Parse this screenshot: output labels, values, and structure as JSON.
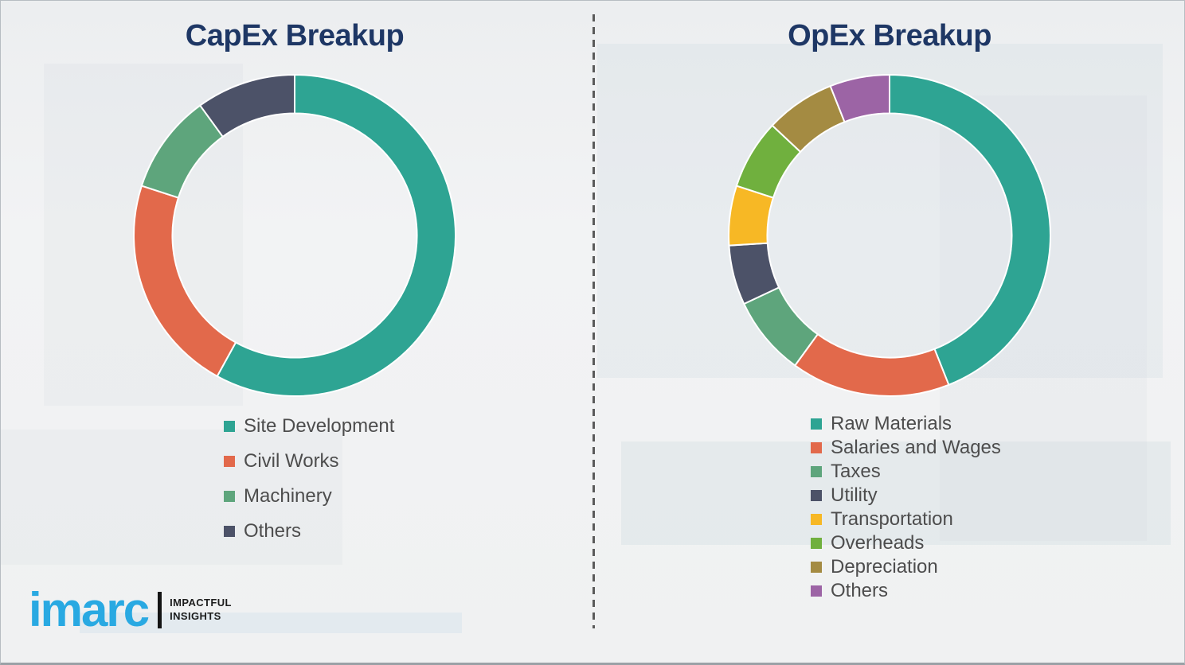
{
  "chart_data": [
    {
      "type": "donut",
      "title": "CapEx Breakup",
      "categories": [
        "Site Development",
        "Civil Works",
        "Machinery",
        "Others"
      ],
      "values": [
        58,
        22,
        10,
        10
      ],
      "unit": "percent-of-total",
      "colors": [
        "#2EA493",
        "#E2694B",
        "#5EA57C",
        "#4C5268"
      ],
      "start_angle_deg": 0,
      "direction": "clockwise",
      "donut_hole_ratio": 0.76,
      "segment_separator_color": "#FFFFFF",
      "legend_position": "below-left",
      "title_color": "#1E3765"
    },
    {
      "type": "donut",
      "title": "OpEx Breakup",
      "categories": [
        "Raw Materials",
        "Salaries and Wages",
        "Taxes",
        "Utility",
        "Transportation",
        "Overheads",
        "Depreciation",
        "Others"
      ],
      "values": [
        44,
        16,
        8,
        6,
        6,
        7,
        7,
        6
      ],
      "unit": "percent-of-total",
      "colors": [
        "#2EA493",
        "#E2694B",
        "#5EA57C",
        "#4C5268",
        "#F7B825",
        "#70B03E",
        "#A48B42",
        "#9C64A5"
      ],
      "start_angle_deg": 0,
      "direction": "clockwise",
      "donut_hole_ratio": 0.76,
      "segment_separator_color": "#FFFFFF",
      "legend_position": "below-left",
      "title_color": "#1E3765"
    }
  ],
  "divider": {
    "style": "dashed-vertical",
    "color": "#5A5A5A"
  },
  "logo": {
    "brand": "imarc",
    "brand_color": "#29A9E2",
    "tagline": [
      "IMPACTFUL",
      "INSIGHTS"
    ]
  }
}
